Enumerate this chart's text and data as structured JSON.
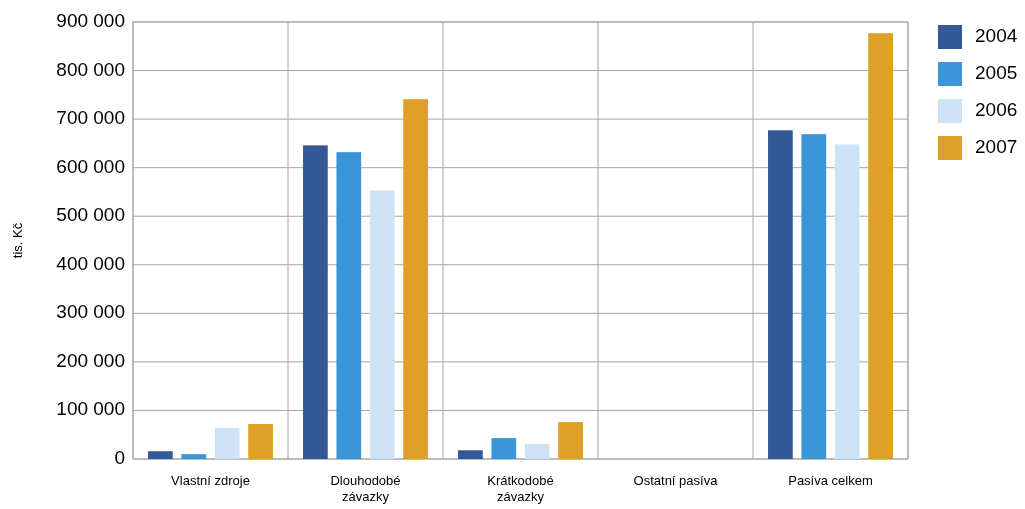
{
  "chart_data": {
    "type": "bar",
    "ylabel": "tis. Kč",
    "categories": [
      "Vlastní zdroje",
      "Dlouhodobé závazky",
      "Krátkodobé závazky",
      "Ostatní pasíva",
      "Pasíva celkem"
    ],
    "series": [
      {
        "name": "2004",
        "color": "#335a96",
        "values": [
          16000,
          646000,
          18000,
          0,
          677000
        ]
      },
      {
        "name": "2005",
        "color": "#3a95d6",
        "values": [
          10000,
          632000,
          43000,
          0,
          669000
        ]
      },
      {
        "name": "2006",
        "color": "#cde3f5",
        "values": [
          64000,
          553000,
          31000,
          0,
          648000
        ]
      },
      {
        "name": "2007",
        "color": "#dea027",
        "values": [
          72000,
          741000,
          76000,
          0,
          877000
        ]
      }
    ],
    "ylim": [
      0,
      900000
    ],
    "yticks": [
      {
        "value": 0,
        "label": "0"
      },
      {
        "value": 100000,
        "label": "100 000"
      },
      {
        "value": 200000,
        "label": "200 000"
      },
      {
        "value": 300000,
        "label": "300 000"
      },
      {
        "value": 400000,
        "label": "400 000"
      },
      {
        "value": 500000,
        "label": "500 000"
      },
      {
        "value": 600000,
        "label": "600 000"
      },
      {
        "value": 700000,
        "label": "700 000"
      },
      {
        "value": 800000,
        "label": "800 000"
      },
      {
        "value": 900000,
        "label": "900 000"
      }
    ],
    "grid": true,
    "legend": "right"
  }
}
